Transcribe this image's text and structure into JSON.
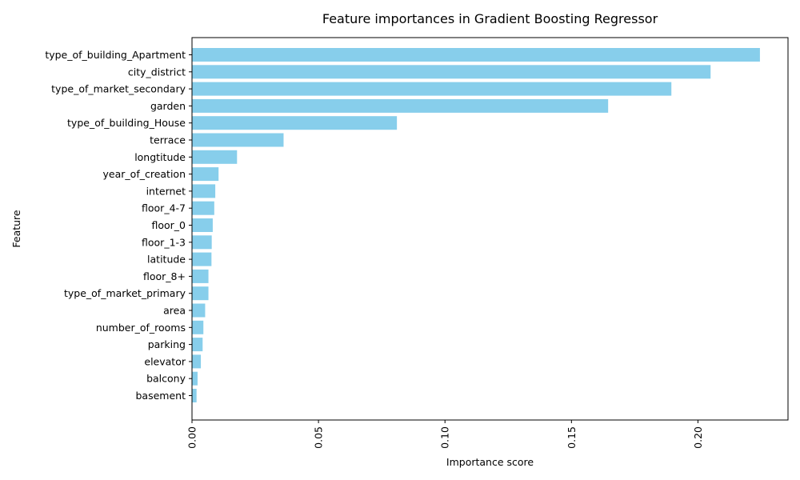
{
  "chart_data": {
    "type": "bar",
    "orientation": "horizontal",
    "title": "Feature importances in Gradient Boosting Regressor",
    "xlabel": "Importance score",
    "ylabel": "Feature",
    "xlim": [
      0,
      0.2356
    ],
    "xticks": [
      "0.00",
      "0.05",
      "0.10",
      "0.15",
      "0.20"
    ],
    "xtick_values": [
      0,
      0.05,
      0.1,
      0.15,
      0.2
    ],
    "grid": false,
    "bar_color": "#87ceeb",
    "categories": [
      "type_of_building_Apartment",
      "city_district",
      "type_of_market_secondary",
      "garden",
      "type_of_building_House",
      "terrace",
      "longtitude",
      "year_of_creation",
      "internet",
      "floor_4-7",
      "floor_0",
      "floor_1-3",
      "latitude",
      "floor_8+",
      "type_of_market_primary",
      "area",
      "number_of_rooms",
      "parking",
      "elevator",
      "balcony",
      "basement"
    ],
    "values": [
      0.2245,
      0.205,
      0.1895,
      0.1645,
      0.081,
      0.0362,
      0.0178,
      0.0105,
      0.0092,
      0.0088,
      0.0082,
      0.0078,
      0.0077,
      0.0065,
      0.0065,
      0.0052,
      0.0045,
      0.0042,
      0.0035,
      0.0022,
      0.0018
    ]
  }
}
